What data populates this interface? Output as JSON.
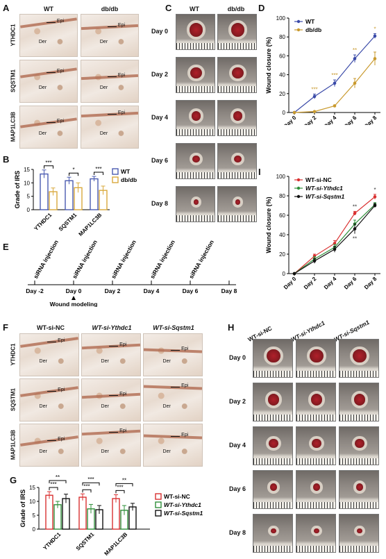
{
  "panels": {
    "a": "A",
    "b": "B",
    "c": "C",
    "d": "D",
    "e": "E",
    "f": "F",
    "g": "G",
    "h": "H",
    "i": "I"
  },
  "panelA": {
    "columns": [
      "WT",
      "db/db"
    ],
    "rows": [
      "YTHDC1",
      "SQSTM1",
      "MAP1LC3B"
    ],
    "epi": "Epi",
    "der": "Der"
  },
  "panelC": {
    "columns": [
      "WT",
      "db/db"
    ],
    "days": [
      "Day 0",
      "Day 2",
      "Day 4",
      "Day 6",
      "Day 8"
    ]
  },
  "panelE": {
    "injection": "siRNA injection",
    "ticks": [
      "Day -2",
      "Day 0",
      "Day 2",
      "Day 4",
      "Day 6",
      "Day 8"
    ],
    "modeling": "Wound modeling"
  },
  "panelF": {
    "columns": [
      "WT-si-NC",
      "WT-si-Ythdc1",
      "WT-si-Sqstm1"
    ],
    "rows": [
      "YTHDC1",
      "SQSTM1",
      "MAP1LC3B"
    ],
    "epi": "Epi",
    "der": "Der"
  },
  "panelH": {
    "columns": [
      "WT-si-NC",
      "WT-si-Ythdc1",
      "WT-si-Sqstm1"
    ],
    "days": [
      "Day 0",
      "Day 2",
      "Day 4",
      "Day 6",
      "Day 8"
    ]
  },
  "chart_data": [
    {
      "id": "B",
      "type": "bar",
      "ylabel": "Grade of IRS",
      "ylim": [
        0,
        15
      ],
      "yticks": [
        0,
        5,
        10,
        15
      ],
      "categories": [
        "YTHDC1",
        "SQSTM1",
        "MAP1LC3B"
      ],
      "series": [
        {
          "name": "WT",
          "color": "#4a5ab0",
          "values": [
            13.3,
            10.8,
            11.5
          ],
          "err": [
            1.5,
            1.3,
            0.9
          ]
        },
        {
          "name": "db/db",
          "color": "#d9a93c",
          "values": [
            6.7,
            8.2,
            7.2
          ],
          "err": [
            1.4,
            1.8,
            1.6
          ]
        }
      ],
      "significance": [
        "***",
        "*",
        "***"
      ]
    },
    {
      "id": "D",
      "type": "line",
      "ylabel": "Wound closure (%)",
      "ylim": [
        0,
        100
      ],
      "yticks": [
        0,
        20,
        40,
        60,
        80,
        100
      ],
      "categories": [
        "Day 0",
        "Day 2",
        "Day 4",
        "Day 6",
        "Day 8"
      ],
      "series": [
        {
          "name": "WT",
          "color": "#3a4aa8",
          "marker": "circle",
          "values": [
            0,
            17,
            31,
            57,
            81
          ],
          "err": [
            0,
            2.5,
            3.5,
            4,
            2.5
          ]
        },
        {
          "name": "db/db",
          "color": "#c99a2e",
          "marker": "circle",
          "values": [
            0,
            1,
            7,
            31,
            57
          ],
          "err": [
            0,
            0.5,
            1,
            5,
            7
          ]
        }
      ],
      "significance": [
        "",
        "***",
        "***",
        "**",
        "*"
      ],
      "legend": "top-left"
    },
    {
      "id": "G",
      "type": "bar",
      "ylabel": "Grade of IRS",
      "ylim": [
        0,
        15
      ],
      "yticks": [
        0,
        5,
        10,
        15
      ],
      "categories": [
        "YTHDC1",
        "SQSTM1",
        "MAP1LC3B"
      ],
      "series": [
        {
          "name": "WT-si-NC",
          "color": "#d93030",
          "values": [
            12.2,
            11.5,
            11
          ],
          "err": [
            1.3,
            1.2,
            1.4
          ]
        },
        {
          "name": "WT-si-Ythdc1",
          "color": "#2f8f3a",
          "values": [
            8.8,
            7.3,
            6.8
          ],
          "err": [
            1.2,
            1.6,
            1.7
          ]
        },
        {
          "name": "WT-si-Sqstm1",
          "color": "#111111",
          "values": [
            11,
            7.0,
            8.0
          ],
          "err": [
            1.6,
            1.5,
            1.3
          ]
        }
      ],
      "significance": [
        "***",
        "**",
        "***",
        "***",
        "***",
        "**"
      ],
      "legend": "right"
    },
    {
      "id": "I",
      "type": "line",
      "ylabel": "Wound closure (%)",
      "ylim": [
        0,
        100
      ],
      "yticks": [
        0,
        20,
        40,
        60,
        80,
        100
      ],
      "categories": [
        "Day 0",
        "Day 2",
        "Day 4",
        "Day 6",
        "Day 8"
      ],
      "series": [
        {
          "name": "WT-si-NC",
          "color": "#d93030",
          "values": [
            0,
            18,
            31,
            62,
            79
          ],
          "err": [
            0,
            2,
            3,
            2,
            2.5
          ]
        },
        {
          "name": "WT-si-Ythdc1",
          "color": "#2f8f3a",
          "values": [
            0,
            15,
            27,
            51,
            71
          ],
          "err": [
            0,
            2.5,
            3,
            4,
            2
          ]
        },
        {
          "name": "WT-si-Sqstm1",
          "color": "#111111",
          "values": [
            0,
            13,
            25,
            46,
            70
          ],
          "err": [
            0,
            2.5,
            3,
            5,
            2
          ]
        }
      ],
      "significance": [
        "",
        "",
        "",
        "**",
        "*"
      ],
      "significance_lower": [
        "",
        "",
        "",
        "**",
        ""
      ],
      "legend": "top-left"
    }
  ]
}
